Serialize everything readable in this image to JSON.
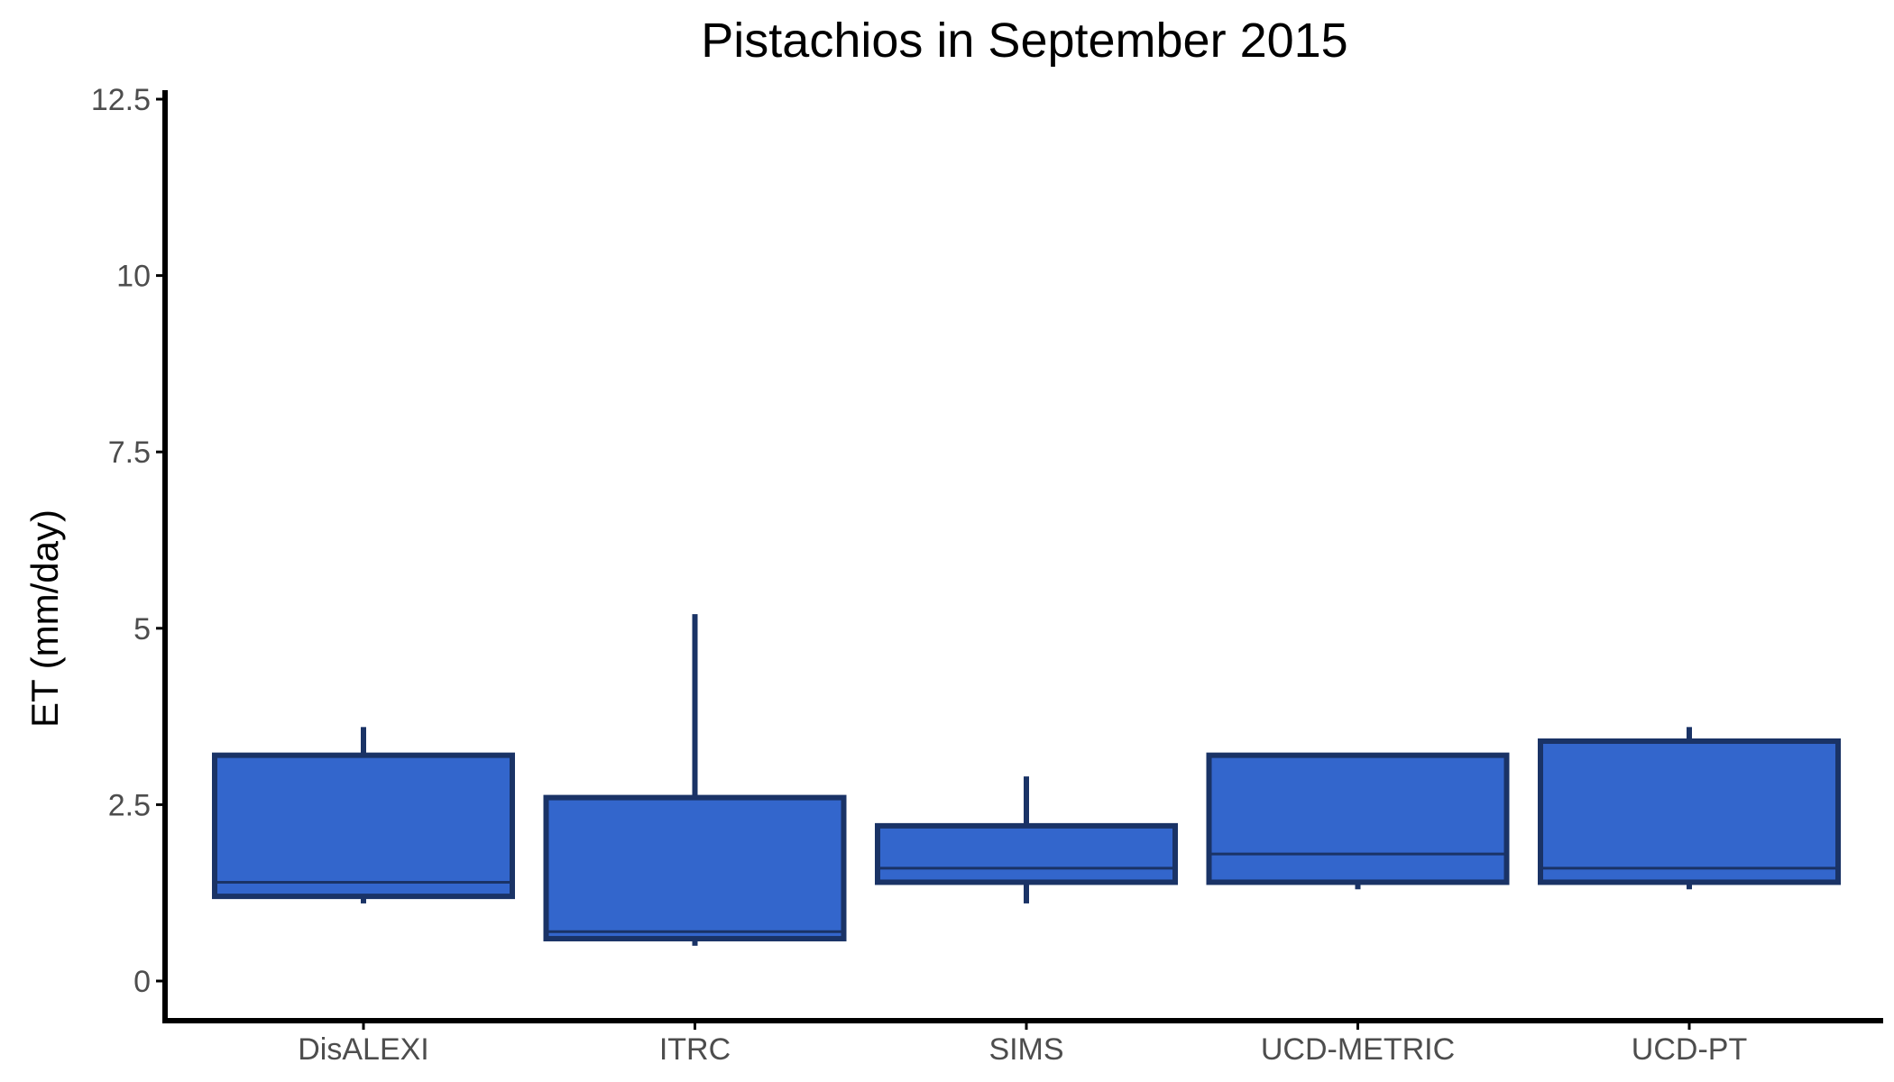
{
  "chart_data": {
    "type": "boxplot",
    "title": "Pistachios in September 2015",
    "xlabel": "",
    "ylabel": "ET (mm/day)",
    "ylim": [
      -0.6,
      12.5
    ],
    "yticks": [
      0,
      2.5,
      5,
      7.5,
      10,
      12.5
    ],
    "ytick_labels": [
      "0",
      "2.5",
      "5",
      "7.5",
      "10",
      "12.5"
    ],
    "grid": false,
    "legend": "none",
    "categories": [
      "DisALEXI",
      "ITRC",
      "SIMS",
      "UCD-METRIC",
      "UCD-PT"
    ],
    "boxes": [
      {
        "category": "DisALEXI",
        "min": 1.1,
        "q1": 1.2,
        "median": 1.4,
        "q3": 3.2,
        "max": 3.6
      },
      {
        "category": "ITRC",
        "min": 0.5,
        "q1": 0.6,
        "median": 0.7,
        "q3": 2.6,
        "max": 5.2
      },
      {
        "category": "SIMS",
        "min": 1.1,
        "q1": 1.4,
        "median": 1.6,
        "q3": 2.2,
        "max": 2.9
      },
      {
        "category": "UCD-METRIC",
        "min": 1.3,
        "q1": 1.4,
        "median": 1.8,
        "q3": 3.2,
        "max": 3.2
      },
      {
        "category": "UCD-PT",
        "min": 1.3,
        "q1": 1.4,
        "median": 1.6,
        "q3": 3.4,
        "max": 3.6
      }
    ],
    "colors": {
      "fill": "#3366cc",
      "outline": "#1a3366",
      "axis": "#000000",
      "tick_text": "#4d4d4d"
    }
  }
}
